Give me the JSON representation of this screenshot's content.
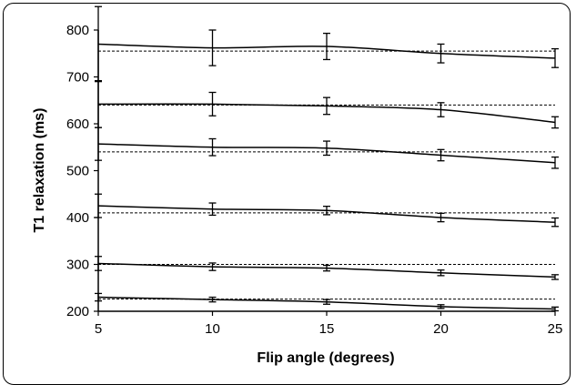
{
  "chart_data": {
    "type": "line",
    "title": "",
    "xlabel": "Flip angle (degrees)",
    "ylabel": "T1 relaxation (ms)",
    "xlim": [
      5,
      25
    ],
    "ylim": [
      200,
      800
    ],
    "x_ticks": [
      5,
      10,
      15,
      20,
      25
    ],
    "y_ticks": [
      200,
      300,
      400,
      500,
      600,
      700,
      800
    ],
    "grid": false,
    "legend": "none",
    "x": [
      5,
      10,
      15,
      20,
      25
    ],
    "series": [
      {
        "values": [
          770,
          762,
          765,
          750,
          740
        ],
        "errors": [
          80,
          38,
          28,
          20,
          20
        ],
        "reference": 755
      },
      {
        "values": [
          642,
          642,
          638,
          630,
          603
        ],
        "errors": [
          50,
          25,
          18,
          15,
          12
        ],
        "reference": 640
      },
      {
        "values": [
          557,
          550,
          548,
          533,
          517
        ],
        "errors": [
          35,
          18,
          15,
          12,
          12
        ],
        "reference": 540
      },
      {
        "values": [
          425,
          418,
          415,
          400,
          390
        ],
        "errors": [
          25,
          13,
          9,
          9,
          9
        ],
        "reference": 410
      },
      {
        "values": [
          302,
          295,
          292,
          282,
          273
        ],
        "errors": [
          15,
          8,
          6,
          6,
          5
        ],
        "reference": 300
      },
      {
        "values": [
          230,
          225,
          220,
          210,
          205
        ],
        "errors": [
          8,
          5,
          5,
          4,
          4
        ],
        "reference": 226
      }
    ],
    "line_color": "#000000"
  }
}
